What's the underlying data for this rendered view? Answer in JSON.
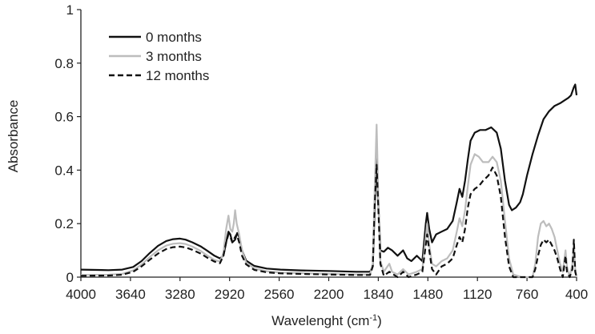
{
  "chart_data": {
    "type": "line",
    "xlabel": "Wavelenght (cm",
    "xlabel_sup": "-1",
    "xlabel_suffix": ")",
    "ylabel": "Absorbance",
    "xlim": [
      4000,
      400
    ],
    "ylim": [
      0,
      1
    ],
    "x_reversed": true,
    "xticks": [
      4000,
      3640,
      3280,
      2920,
      2560,
      2200,
      1840,
      1480,
      1120,
      760,
      400
    ],
    "yticks": [
      0,
      0.2,
      0.4,
      0.6,
      0.8,
      1
    ],
    "ytick_labels": [
      "0",
      "0.2",
      "0.4",
      "0.6",
      "0.8",
      "1"
    ],
    "grid": false,
    "legend_position": "top-left",
    "series": [
      {
        "name": "0 months",
        "color": "#111111",
        "dash": "solid",
        "points": [
          [
            4000,
            0.028
          ],
          [
            3800,
            0.026
          ],
          [
            3700,
            0.028
          ],
          [
            3620,
            0.038
          ],
          [
            3560,
            0.06
          ],
          [
            3500,
            0.09
          ],
          [
            3440,
            0.117
          ],
          [
            3380,
            0.135
          ],
          [
            3330,
            0.142
          ],
          [
            3280,
            0.144
          ],
          [
            3240,
            0.14
          ],
          [
            3190,
            0.13
          ],
          [
            3130,
            0.115
          ],
          [
            3080,
            0.098
          ],
          [
            3030,
            0.08
          ],
          [
            2990,
            0.07
          ],
          [
            2965,
            0.08
          ],
          [
            2945,
            0.13
          ],
          [
            2928,
            0.17
          ],
          [
            2915,
            0.16
          ],
          [
            2900,
            0.13
          ],
          [
            2880,
            0.14
          ],
          [
            2865,
            0.165
          ],
          [
            2850,
            0.15
          ],
          [
            2830,
            0.1
          ],
          [
            2800,
            0.062
          ],
          [
            2740,
            0.042
          ],
          [
            2650,
            0.032
          ],
          [
            2550,
            0.028
          ],
          [
            2400,
            0.025
          ],
          [
            2200,
            0.023
          ],
          [
            2000,
            0.02
          ],
          [
            1900,
            0.02
          ],
          [
            1880,
            0.04
          ],
          [
            1865,
            0.28
          ],
          [
            1852,
            0.46
          ],
          [
            1840,
            0.28
          ],
          [
            1825,
            0.1
          ],
          [
            1800,
            0.095
          ],
          [
            1770,
            0.11
          ],
          [
            1740,
            0.1
          ],
          [
            1700,
            0.08
          ],
          [
            1660,
            0.1
          ],
          [
            1630,
            0.07
          ],
          [
            1600,
            0.06
          ],
          [
            1560,
            0.08
          ],
          [
            1520,
            0.06
          ],
          [
            1495,
            0.2
          ],
          [
            1485,
            0.24
          ],
          [
            1470,
            0.18
          ],
          [
            1450,
            0.13
          ],
          [
            1420,
            0.16
          ],
          [
            1380,
            0.17
          ],
          [
            1340,
            0.18
          ],
          [
            1300,
            0.21
          ],
          [
            1270,
            0.28
          ],
          [
            1250,
            0.33
          ],
          [
            1230,
            0.3
          ],
          [
            1210,
            0.36
          ],
          [
            1190,
            0.44
          ],
          [
            1170,
            0.51
          ],
          [
            1140,
            0.54
          ],
          [
            1100,
            0.55
          ],
          [
            1060,
            0.55
          ],
          [
            1020,
            0.56
          ],
          [
            980,
            0.54
          ],
          [
            950,
            0.48
          ],
          [
            920,
            0.36
          ],
          [
            890,
            0.27
          ],
          [
            870,
            0.25
          ],
          [
            840,
            0.26
          ],
          [
            810,
            0.28
          ],
          [
            790,
            0.31
          ],
          [
            760,
            0.38
          ],
          [
            720,
            0.46
          ],
          [
            680,
            0.53
          ],
          [
            640,
            0.59
          ],
          [
            600,
            0.62
          ],
          [
            560,
            0.64
          ],
          [
            520,
            0.65
          ],
          [
            490,
            0.66
          ],
          [
            460,
            0.67
          ],
          [
            440,
            0.68
          ],
          [
            420,
            0.71
          ],
          [
            410,
            0.72
          ],
          [
            400,
            0.68
          ]
        ]
      },
      {
        "name": "3 months",
        "color": "#bdbdbd",
        "dash": "solid",
        "points": [
          [
            4000,
            0.008
          ],
          [
            3800,
            0.009
          ],
          [
            3700,
            0.012
          ],
          [
            3620,
            0.025
          ],
          [
            3560,
            0.047
          ],
          [
            3500,
            0.075
          ],
          [
            3440,
            0.1
          ],
          [
            3380,
            0.118
          ],
          [
            3330,
            0.125
          ],
          [
            3280,
            0.127
          ],
          [
            3240,
            0.124
          ],
          [
            3190,
            0.114
          ],
          [
            3130,
            0.098
          ],
          [
            3080,
            0.08
          ],
          [
            3030,
            0.064
          ],
          [
            2990,
            0.058
          ],
          [
            2965,
            0.09
          ],
          [
            2945,
            0.18
          ],
          [
            2928,
            0.23
          ],
          [
            2915,
            0.18
          ],
          [
            2900,
            0.17
          ],
          [
            2890,
            0.2
          ],
          [
            2880,
            0.25
          ],
          [
            2868,
            0.2
          ],
          [
            2850,
            0.16
          ],
          [
            2830,
            0.1
          ],
          [
            2800,
            0.055
          ],
          [
            2740,
            0.032
          ],
          [
            2650,
            0.022
          ],
          [
            2550,
            0.017
          ],
          [
            2400,
            0.015
          ],
          [
            2200,
            0.012
          ],
          [
            2000,
            0.01
          ],
          [
            1900,
            0.01
          ],
          [
            1880,
            0.05
          ],
          [
            1865,
            0.35
          ],
          [
            1852,
            0.57
          ],
          [
            1840,
            0.3
          ],
          [
            1825,
            0.06
          ],
          [
            1800,
            0.02
          ],
          [
            1760,
            0.05
          ],
          [
            1740,
            0.02
          ],
          [
            1700,
            0.01
          ],
          [
            1660,
            0.03
          ],
          [
            1620,
            0.01
          ],
          [
            1560,
            0.02
          ],
          [
            1520,
            0.03
          ],
          [
            1495,
            0.15
          ],
          [
            1485,
            0.2
          ],
          [
            1470,
            0.12
          ],
          [
            1450,
            0.05
          ],
          [
            1420,
            0.04
          ],
          [
            1380,
            0.06
          ],
          [
            1340,
            0.07
          ],
          [
            1300,
            0.1
          ],
          [
            1270,
            0.17
          ],
          [
            1250,
            0.22
          ],
          [
            1230,
            0.19
          ],
          [
            1210,
            0.25
          ],
          [
            1190,
            0.34
          ],
          [
            1170,
            0.42
          ],
          [
            1140,
            0.46
          ],
          [
            1110,
            0.45
          ],
          [
            1080,
            0.43
          ],
          [
            1040,
            0.43
          ],
          [
            1010,
            0.45
          ],
          [
            980,
            0.43
          ],
          [
            950,
            0.36
          ],
          [
            920,
            0.21
          ],
          [
            890,
            0.07
          ],
          [
            860,
            0.01
          ],
          [
            800,
            0.0
          ],
          [
            720,
            0.0
          ],
          [
            700,
            0.05
          ],
          [
            680,
            0.15
          ],
          [
            660,
            0.2
          ],
          [
            640,
            0.21
          ],
          [
            620,
            0.19
          ],
          [
            600,
            0.2
          ],
          [
            580,
            0.18
          ],
          [
            560,
            0.15
          ],
          [
            540,
            0.1
          ],
          [
            520,
            0.05
          ],
          [
            500,
            0.02
          ],
          [
            480,
            0.1
          ],
          [
            470,
            0.04
          ],
          [
            450,
            0.0
          ],
          [
            430,
            0.05
          ],
          [
            420,
            0.13
          ],
          [
            410,
            0.03
          ],
          [
            400,
            0.0
          ]
        ]
      },
      {
        "name": "12 months",
        "color": "#111111",
        "dash": "dashed",
        "points": [
          [
            4000,
            0.005
          ],
          [
            3800,
            0.006
          ],
          [
            3700,
            0.009
          ],
          [
            3620,
            0.02
          ],
          [
            3560,
            0.04
          ],
          [
            3500,
            0.065
          ],
          [
            3440,
            0.088
          ],
          [
            3380,
            0.105
          ],
          [
            3330,
            0.112
          ],
          [
            3280,
            0.114
          ],
          [
            3240,
            0.111
          ],
          [
            3190,
            0.102
          ],
          [
            3130,
            0.088
          ],
          [
            3080,
            0.072
          ],
          [
            3030,
            0.058
          ],
          [
            2990,
            0.052
          ],
          [
            2965,
            0.08
          ],
          [
            2945,
            0.13
          ],
          [
            2928,
            0.16
          ],
          [
            2915,
            0.15
          ],
          [
            2900,
            0.13
          ],
          [
            2880,
            0.15
          ],
          [
            2868,
            0.16
          ],
          [
            2850,
            0.13
          ],
          [
            2830,
            0.08
          ],
          [
            2800,
            0.048
          ],
          [
            2740,
            0.027
          ],
          [
            2650,
            0.018
          ],
          [
            2550,
            0.014
          ],
          [
            2400,
            0.012
          ],
          [
            2200,
            0.01
          ],
          [
            2000,
            0.008
          ],
          [
            1900,
            0.008
          ],
          [
            1880,
            0.04
          ],
          [
            1865,
            0.28
          ],
          [
            1852,
            0.42
          ],
          [
            1840,
            0.26
          ],
          [
            1825,
            0.05
          ],
          [
            1800,
            0.005
          ],
          [
            1760,
            0.02
          ],
          [
            1700,
            0.0
          ],
          [
            1660,
            0.02
          ],
          [
            1620,
            0.0
          ],
          [
            1560,
            0.01
          ],
          [
            1520,
            0.02
          ],
          [
            1495,
            0.12
          ],
          [
            1485,
            0.16
          ],
          [
            1470,
            0.1
          ],
          [
            1450,
            0.03
          ],
          [
            1420,
            0.01
          ],
          [
            1380,
            0.04
          ],
          [
            1340,
            0.05
          ],
          [
            1300,
            0.07
          ],
          [
            1270,
            0.12
          ],
          [
            1250,
            0.15
          ],
          [
            1230,
            0.13
          ],
          [
            1210,
            0.18
          ],
          [
            1190,
            0.26
          ],
          [
            1170,
            0.31
          ],
          [
            1140,
            0.33
          ],
          [
            1110,
            0.34
          ],
          [
            1080,
            0.36
          ],
          [
            1040,
            0.38
          ],
          [
            1010,
            0.41
          ],
          [
            980,
            0.38
          ],
          [
            950,
            0.3
          ],
          [
            920,
            0.15
          ],
          [
            890,
            0.04
          ],
          [
            860,
            0.0
          ],
          [
            760,
            0.0
          ],
          [
            720,
            0.0
          ],
          [
            700,
            0.03
          ],
          [
            680,
            0.08
          ],
          [
            660,
            0.12
          ],
          [
            640,
            0.14
          ],
          [
            620,
            0.13
          ],
          [
            600,
            0.14
          ],
          [
            580,
            0.12
          ],
          [
            560,
            0.1
          ],
          [
            540,
            0.07
          ],
          [
            520,
            0.03
          ],
          [
            500,
            0.0
          ],
          [
            480,
            0.08
          ],
          [
            470,
            0.02
          ],
          [
            450,
            0.0
          ],
          [
            430,
            0.03
          ],
          [
            420,
            0.14
          ],
          [
            410,
            0.02
          ],
          [
            400,
            0.0
          ]
        ]
      }
    ]
  }
}
